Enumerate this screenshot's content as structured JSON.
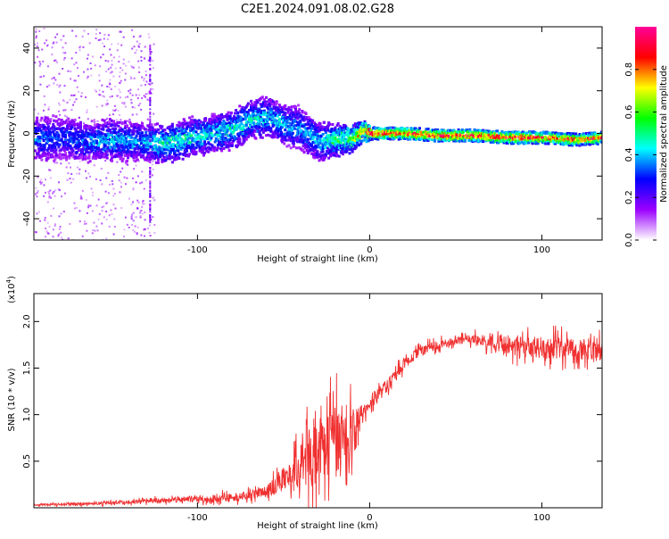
{
  "chart_data": [
    {
      "type": "heatmap",
      "title": "C2E1.2024.091.08.02.G28",
      "xlabel": "Height of straight line (km)",
      "ylabel": "Frequency (Hz)",
      "xlim": [
        -195,
        135
      ],
      "ylim": [
        -50,
        50
      ],
      "xticks": [
        -100,
        0,
        100
      ],
      "xtick_labels": [
        "-100",
        "0",
        "100"
      ],
      "yticks": [
        -40,
        -20,
        0,
        20,
        40
      ],
      "ytick_labels": [
        "-40",
        "-20",
        "0",
        "20",
        "40"
      ],
      "colorbar": {
        "label": "Normalized spectral amplitude",
        "range": [
          0,
          1
        ],
        "ticks": [
          0.0,
          0.2,
          0.4,
          0.6,
          0.8
        ],
        "tick_labels": [
          "0.0",
          "0.2",
          "0.4",
          "0.6",
          "0.8"
        ],
        "colors": [
          "#ffffff",
          "#9a00ff",
          "#0000ff",
          "#00ffff",
          "#00ff00",
          "#ffff00",
          "#ff0000",
          "#ff0099"
        ]
      },
      "ridge": {
        "x": [
          -195,
          -180,
          -165,
          -150,
          -135,
          -120,
          -105,
          -90,
          -80,
          -70,
          -60,
          -50,
          -40,
          -30,
          -20,
          -10,
          -5,
          0,
          20,
          40,
          60,
          80,
          100,
          120,
          135
        ],
        "freq": [
          -3,
          -2,
          -4,
          -3,
          -4,
          -5,
          -2,
          0,
          2,
          6,
          8,
          4,
          2,
          -4,
          -3,
          -2,
          1,
          0,
          0,
          -1,
          -1,
          -2,
          -2,
          -3,
          -2
        ],
        "amplitude": [
          0.35,
          0.3,
          0.35,
          0.4,
          0.35,
          0.45,
          0.45,
          0.4,
          0.45,
          0.45,
          0.4,
          0.4,
          0.35,
          0.4,
          0.5,
          0.6,
          0.75,
          0.85,
          0.85,
          0.85,
          0.85,
          0.85,
          0.85,
          0.8,
          0.8
        ],
        "spread_hz": [
          7,
          7,
          6,
          6,
          6,
          6,
          6,
          6,
          6,
          6,
          6,
          6,
          7,
          6,
          5,
          4,
          3,
          2,
          2,
          2,
          2,
          2,
          2,
          2,
          2
        ]
      }
    },
    {
      "type": "line",
      "xlabel": "Height of straight line (km)",
      "ylabel": "SNR (10 * v/v)",
      "y_multiplier": "(x10",
      "y_multiplier_exp": "4",
      "y_multiplier_close": ")",
      "xlim": [
        -195,
        135
      ],
      "ylim": [
        0,
        2.3
      ],
      "xticks": [
        -100,
        0,
        100
      ],
      "xtick_labels": [
        "-100",
        "0",
        "100"
      ],
      "yticks": [
        0.5,
        1.0,
        1.5,
        2.0
      ],
      "ytick_labels": [
        "0.5",
        "1.0",
        "1.5",
        "2.0"
      ],
      "color": "#f03030",
      "series": [
        {
          "x": [
            -195,
            -170,
            -150,
            -130,
            -110,
            -90,
            -70,
            -60,
            -50,
            -40,
            -35,
            -30,
            -25,
            -20,
            -15,
            -10,
            -5,
            0,
            5,
            10,
            20,
            30,
            40,
            50,
            60,
            70,
            80,
            90,
            100,
            110,
            120,
            130,
            135
          ],
          "y": [
            0.03,
            0.04,
            0.05,
            0.07,
            0.09,
            0.1,
            0.13,
            0.18,
            0.3,
            0.45,
            0.55,
            0.6,
            0.65,
            0.7,
            0.75,
            0.78,
            1.0,
            1.1,
            1.25,
            1.3,
            1.55,
            1.7,
            1.75,
            1.8,
            1.8,
            1.78,
            1.75,
            1.73,
            1.72,
            1.72,
            1.7,
            1.68,
            1.7
          ],
          "noise": [
            0.01,
            0.02,
            0.02,
            0.03,
            0.04,
            0.05,
            0.06,
            0.08,
            0.15,
            0.3,
            0.4,
            0.45,
            0.45,
            0.5,
            0.45,
            0.4,
            0.12,
            0.08,
            0.07,
            0.08,
            0.08,
            0.07,
            0.06,
            0.06,
            0.07,
            0.1,
            0.13,
            0.15,
            0.15,
            0.15,
            0.15,
            0.15,
            0.15
          ]
        }
      ]
    }
  ]
}
